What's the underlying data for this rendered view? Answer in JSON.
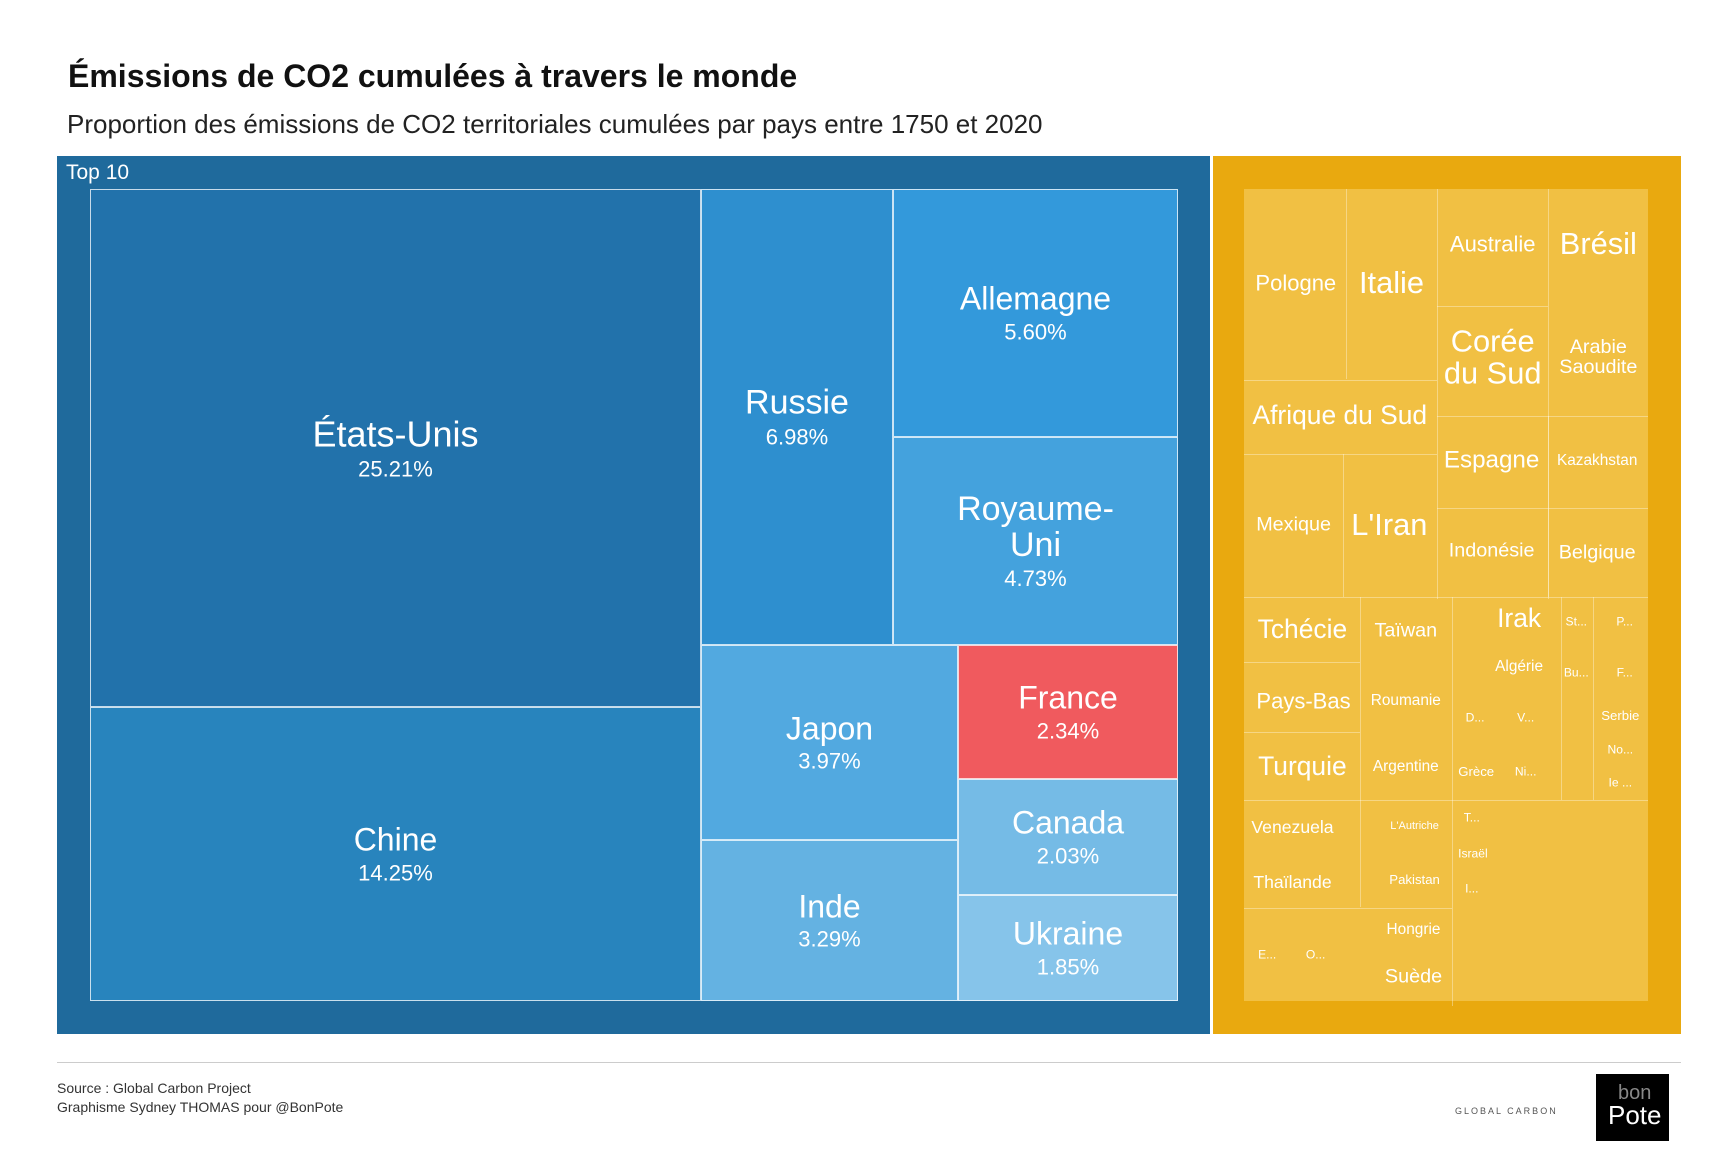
{
  "chart_data": {
    "type": "treemap",
    "title": "Émissions de CO2 cumulées à travers le monde",
    "subtitle": "Proportion des émissions de CO2 territoriales cumulées par pays entre 1750 et 2020",
    "groups": [
      {
        "name": "Top 10",
        "color": "#1f6a9c",
        "categories": [
          "États-Unis",
          "Chine",
          "Russie",
          "Allemagne",
          "Royaume-Uni",
          "Japon",
          "Inde",
          "France",
          "Canada",
          "Ukraine"
        ],
        "values": [
          25.21,
          14.25,
          6.98,
          5.6,
          4.73,
          3.97,
          3.29,
          2.34,
          2.03,
          1.85
        ],
        "value_labels": [
          "25.21%",
          "14.25%",
          "6.98%",
          "5.60%",
          "4.73%",
          "3.97%",
          "3.29%",
          "2.34%",
          "2.03%",
          "1.85%"
        ],
        "colors": [
          "#2272ab",
          "#2884bd",
          "#2e8fcf",
          "#3399db",
          "#44a2dd",
          "#52a9e0",
          "#64b2e2",
          "#f05a5e",
          "#75bbe6",
          "#86c4ea"
        ]
      },
      {
        "color": "#e9a90f",
        "cell_color": "#f1c043",
        "categories": [
          "Pologne",
          "Italie",
          "Australie",
          "Brésil",
          "Corée du Sud",
          "Arabie Saoudite",
          "Afrique du Sud",
          "Espagne",
          "Kazakhstan",
          "Mexique",
          "L'Iran",
          "Indonésie",
          "Belgique",
          "Tchécie",
          "Taïwan",
          "Irak",
          "St...",
          "P...",
          "Algérie",
          "Bu...",
          "F...",
          "Pays-Bas",
          "Roumanie",
          "D...",
          "V...",
          "Serbie",
          "Turquie",
          "Argentine",
          "Grèce",
          "Ni...",
          "No...",
          "Ie ...",
          "Venezuela",
          "L'Autriche",
          "T...",
          "Israël",
          "Thaïlande",
          "Pakistan",
          "I...",
          "Hongrie",
          "E...",
          "O...",
          "Suède"
        ]
      }
    ]
  },
  "footer": {
    "source": "Source : Global Carbon Project",
    "credit": "Graphisme Sydney THOMAS pour @BonPote",
    "logos": [
      "GLOBAL CARBON",
      "bon",
      "Pote"
    ]
  }
}
